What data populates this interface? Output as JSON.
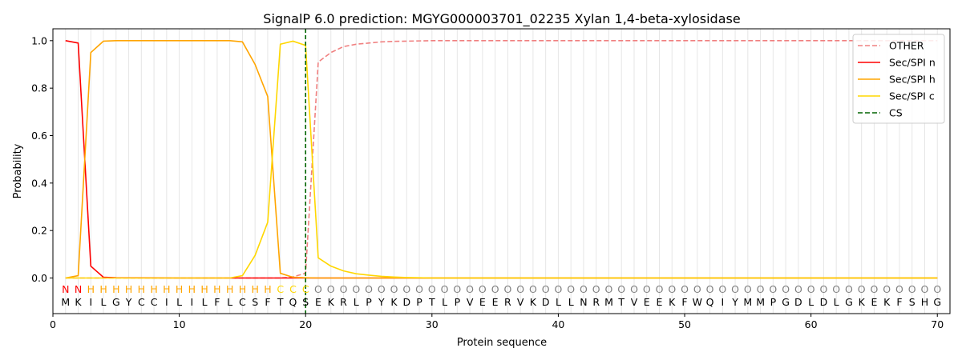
{
  "chart_data": {
    "type": "line",
    "title": "SignalP 6.0 prediction: MGYG000003701_02235 Xylan 1,4-beta-xylosidase",
    "xlabel": "Protein sequence",
    "ylabel": "Probability",
    "xlim": [
      0,
      71
    ],
    "ylim": [
      -0.15,
      1.05
    ],
    "xticks": [
      0,
      10,
      20,
      30,
      40,
      50,
      60,
      70
    ],
    "yticks": [
      0.0,
      0.2,
      0.4,
      0.6,
      0.8,
      1.0
    ],
    "xtick_labels": [
      "0",
      "10",
      "20",
      "30",
      "40",
      "50",
      "60",
      "70"
    ],
    "ytick_labels": [
      "0.0",
      "0.2",
      "0.4",
      "0.6",
      "0.8",
      "1.0"
    ],
    "grid": "vertical lines at each residue",
    "legend_position": "top-right",
    "sequence": [
      "M",
      "K",
      "I",
      "L",
      "G",
      "Y",
      "C",
      "C",
      "I",
      "L",
      "I",
      "L",
      "F",
      "L",
      "C",
      "S",
      "F",
      "T",
      "Q",
      "S",
      "E",
      "K",
      "R",
      "L",
      "P",
      "Y",
      "K",
      "D",
      "P",
      "T",
      "L",
      "P",
      "V",
      "E",
      "E",
      "R",
      "V",
      "K",
      "D",
      "L",
      "L",
      "N",
      "R",
      "M",
      "T",
      "V",
      "E",
      "E",
      "K",
      "F",
      "W",
      "Q",
      "I",
      "Y",
      "M",
      "M",
      "P",
      "G",
      "D",
      "L",
      "D",
      "L",
      "G",
      "K",
      "E",
      "K",
      "F",
      "S",
      "H",
      "G"
    ],
    "labels": [
      "N",
      "N",
      "H",
      "H",
      "H",
      "H",
      "H",
      "H",
      "H",
      "H",
      "H",
      "H",
      "H",
      "H",
      "H",
      "H",
      "H",
      "C",
      "C",
      "C",
      "O",
      "O",
      "O",
      "O",
      "O",
      "O",
      "O",
      "O",
      "O",
      "O",
      "O",
      "O",
      "O",
      "O",
      "O",
      "O",
      "O",
      "O",
      "O",
      "O",
      "O",
      "O",
      "O",
      "O",
      "O",
      "O",
      "O",
      "O",
      "O",
      "O",
      "O",
      "O",
      "O",
      "O",
      "O",
      "O",
      "O",
      "O",
      "O",
      "O",
      "O",
      "O",
      "O",
      "O",
      "O",
      "O",
      "O",
      "O",
      "O",
      "O"
    ],
    "label_colors": {
      "N": "#ff0000",
      "H": "#ffa500",
      "C": "#ffd700",
      "O": "#808080"
    },
    "series": [
      {
        "name": "OTHER",
        "color": "#f08080",
        "dash": true,
        "x": [
          1,
          2,
          3,
          4,
          5,
          6,
          7,
          8,
          9,
          10,
          11,
          12,
          13,
          14,
          15,
          16,
          17,
          18,
          19,
          20,
          21,
          22,
          23,
          24,
          25,
          26,
          27,
          28,
          29,
          30,
          35,
          40,
          45,
          50,
          55,
          60,
          65,
          70
        ],
        "y": [
          0,
          0,
          0,
          0,
          0,
          0,
          0,
          0,
          0,
          0,
          0,
          0,
          0,
          0,
          0,
          0,
          0,
          0,
          0.005,
          0.02,
          0.91,
          0.95,
          0.975,
          0.985,
          0.99,
          0.995,
          0.997,
          0.998,
          0.999,
          1.0,
          1.0,
          1.0,
          1.0,
          1.0,
          1.0,
          1.0,
          1.0,
          1.0
        ]
      },
      {
        "name": "Sec/SPI n",
        "color": "#ff0000",
        "dash": false,
        "x": [
          1,
          2,
          3,
          4,
          5,
          10,
          15,
          20,
          25,
          30,
          40,
          50,
          60,
          70
        ],
        "y": [
          1.0,
          0.99,
          0.05,
          0.003,
          0.001,
          0,
          0,
          0,
          0,
          0,
          0,
          0,
          0,
          0
        ]
      },
      {
        "name": "Sec/SPI h",
        "color": "#ffa500",
        "dash": false,
        "x": [
          1,
          2,
          3,
          4,
          5,
          6,
          7,
          8,
          9,
          10,
          11,
          12,
          13,
          14,
          15,
          16,
          17,
          18,
          19,
          20,
          21,
          25,
          30,
          40,
          50,
          60,
          70
        ],
        "y": [
          0,
          0.01,
          0.95,
          0.998,
          1.0,
          1.0,
          1.0,
          1.0,
          1.0,
          1.0,
          1.0,
          1.0,
          1.0,
          1.0,
          0.995,
          0.9,
          0.765,
          0.02,
          0.003,
          0.001,
          0,
          0,
          0,
          0,
          0,
          0,
          0
        ]
      },
      {
        "name": "Sec/SPI c",
        "color": "#ffd700",
        "dash": false,
        "x": [
          1,
          2,
          3,
          4,
          5,
          10,
          14,
          15,
          16,
          17,
          18,
          19,
          20,
          21,
          22,
          23,
          24,
          25,
          26,
          27,
          28,
          29,
          30,
          40,
          50,
          60,
          70
        ],
        "y": [
          0,
          0,
          0,
          0,
          0,
          0,
          0,
          0.01,
          0.095,
          0.235,
          0.985,
          0.998,
          0.98,
          0.085,
          0.05,
          0.03,
          0.018,
          0.012,
          0.007,
          0.004,
          0.002,
          0.001,
          0,
          0,
          0,
          0,
          0
        ]
      }
    ],
    "cleavage_site": {
      "name": "CS",
      "x": 20,
      "color": "#006400"
    }
  }
}
